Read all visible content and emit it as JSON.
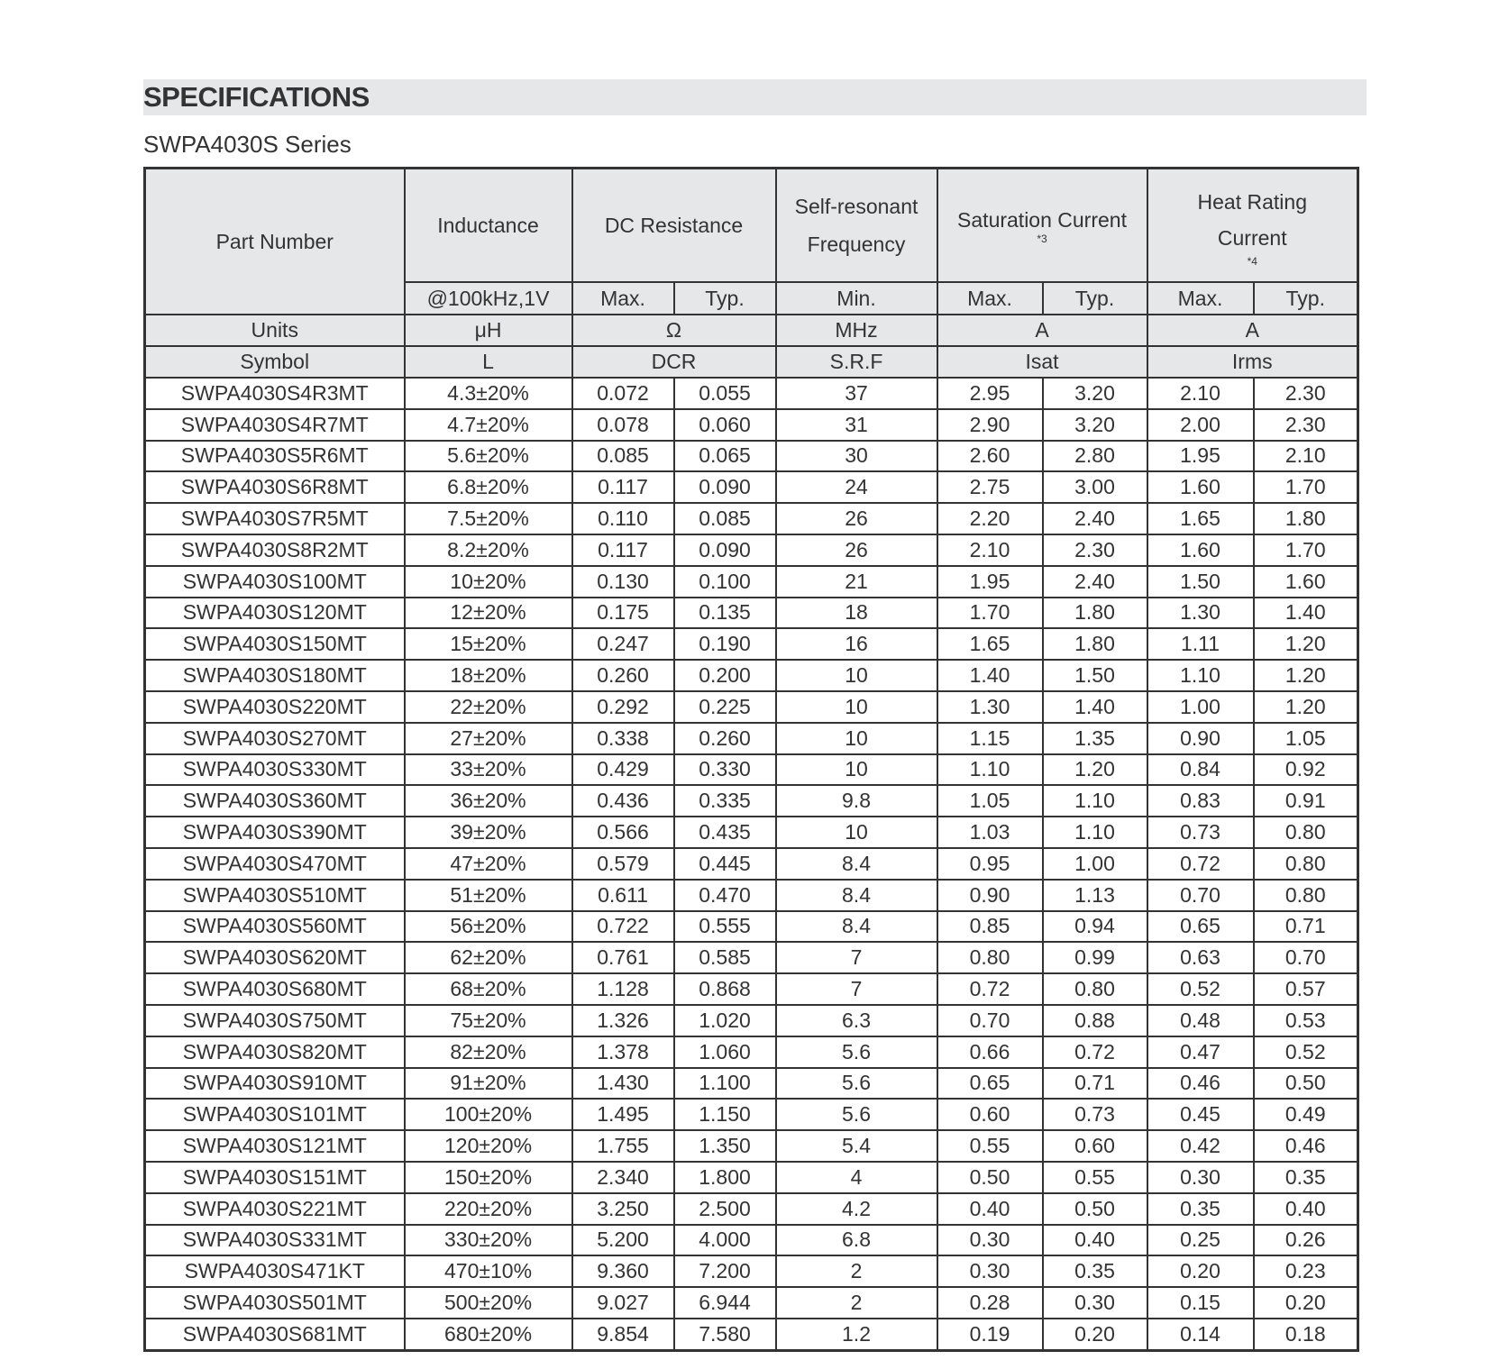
{
  "title": "SPECIFICATIONS",
  "series": "SWPA4030S Series",
  "header": {
    "part_number": "Part Number",
    "inductance": "Inductance",
    "dc_resistance": "DC Resistance",
    "srf_line1": "Self-resonant",
    "srf_line2": "Frequency",
    "sat_current": "Saturation Current",
    "sat_note": "*3",
    "heat_line1": "Heat Rating",
    "heat_line2": "Current",
    "heat_note": "*4",
    "ind_cond": "@100kHz,1V",
    "max": "Max.",
    "typ": "Typ.",
    "min": "Min.",
    "units_label": "Units",
    "units": [
      "μH",
      "Ω",
      "MHz",
      "A",
      "A"
    ],
    "symbol_label": "Symbol",
    "symbols": [
      "L",
      "DCR",
      "S.R.F",
      "Isat",
      "Irms"
    ]
  },
  "rows": [
    [
      "SWPA4030S4R3MT",
      "4.3±20%",
      "0.072",
      "0.055",
      "37",
      "2.95",
      "3.20",
      "2.10",
      "2.30"
    ],
    [
      "SWPA4030S4R7MT",
      "4.7±20%",
      "0.078",
      "0.060",
      "31",
      "2.90",
      "3.20",
      "2.00",
      "2.30"
    ],
    [
      "SWPA4030S5R6MT",
      "5.6±20%",
      "0.085",
      "0.065",
      "30",
      "2.60",
      "2.80",
      "1.95",
      "2.10"
    ],
    [
      "SWPA4030S6R8MT",
      "6.8±20%",
      "0.117",
      "0.090",
      "24",
      "2.75",
      "3.00",
      "1.60",
      "1.70"
    ],
    [
      "SWPA4030S7R5MT",
      "7.5±20%",
      "0.110",
      "0.085",
      "26",
      "2.20",
      "2.40",
      "1.65",
      "1.80"
    ],
    [
      "SWPA4030S8R2MT",
      "8.2±20%",
      "0.117",
      "0.090",
      "26",
      "2.10",
      "2.30",
      "1.60",
      "1.70"
    ],
    [
      "SWPA4030S100MT",
      "10±20%",
      "0.130",
      "0.100",
      "21",
      "1.95",
      "2.40",
      "1.50",
      "1.60"
    ],
    [
      "SWPA4030S120MT",
      "12±20%",
      "0.175",
      "0.135",
      "18",
      "1.70",
      "1.80",
      "1.30",
      "1.40"
    ],
    [
      "SWPA4030S150MT",
      "15±20%",
      "0.247",
      "0.190",
      "16",
      "1.65",
      "1.80",
      "1.11",
      "1.20"
    ],
    [
      "SWPA4030S180MT",
      "18±20%",
      "0.260",
      "0.200",
      "10",
      "1.40",
      "1.50",
      "1.10",
      "1.20"
    ],
    [
      "SWPA4030S220MT",
      "22±20%",
      "0.292",
      "0.225",
      "10",
      "1.30",
      "1.40",
      "1.00",
      "1.20"
    ],
    [
      "SWPA4030S270MT",
      "27±20%",
      "0.338",
      "0.260",
      "10",
      "1.15",
      "1.35",
      "0.90",
      "1.05"
    ],
    [
      "SWPA4030S330MT",
      "33±20%",
      "0.429",
      "0.330",
      "10",
      "1.10",
      "1.20",
      "0.84",
      "0.92"
    ],
    [
      "SWPA4030S360MT",
      "36±20%",
      "0.436",
      "0.335",
      "9.8",
      "1.05",
      "1.10",
      "0.83",
      "0.91"
    ],
    [
      "SWPA4030S390MT",
      "39±20%",
      "0.566",
      "0.435",
      "10",
      "1.03",
      "1.10",
      "0.73",
      "0.80"
    ],
    [
      "SWPA4030S470MT",
      "47±20%",
      "0.579",
      "0.445",
      "8.4",
      "0.95",
      "1.00",
      "0.72",
      "0.80"
    ],
    [
      "SWPA4030S510MT",
      "51±20%",
      "0.611",
      "0.470",
      "8.4",
      "0.90",
      "1.13",
      "0.70",
      "0.80"
    ],
    [
      "SWPA4030S560MT",
      "56±20%",
      "0.722",
      "0.555",
      "8.4",
      "0.85",
      "0.94",
      "0.65",
      "0.71"
    ],
    [
      "SWPA4030S620MT",
      "62±20%",
      "0.761",
      "0.585",
      "7",
      "0.80",
      "0.99",
      "0.63",
      "0.70"
    ],
    [
      "SWPA4030S680MT",
      "68±20%",
      "1.128",
      "0.868",
      "7",
      "0.72",
      "0.80",
      "0.52",
      "0.57"
    ],
    [
      "SWPA4030S750MT",
      "75±20%",
      "1.326",
      "1.020",
      "6.3",
      "0.70",
      "0.88",
      "0.48",
      "0.53"
    ],
    [
      "SWPA4030S820MT",
      "82±20%",
      "1.378",
      "1.060",
      "5.6",
      "0.66",
      "0.72",
      "0.47",
      "0.52"
    ],
    [
      "SWPA4030S910MT",
      "91±20%",
      "1.430",
      "1.100",
      "5.6",
      "0.65",
      "0.71",
      "0.46",
      "0.50"
    ],
    [
      "SWPA4030S101MT",
      "100±20%",
      "1.495",
      "1.150",
      "5.6",
      "0.60",
      "0.73",
      "0.45",
      "0.49"
    ],
    [
      "SWPA4030S121MT",
      "120±20%",
      "1.755",
      "1.350",
      "5.4",
      "0.55",
      "0.60",
      "0.42",
      "0.46"
    ],
    [
      "SWPA4030S151MT",
      "150±20%",
      "2.340",
      "1.800",
      "4",
      "0.50",
      "0.55",
      "0.30",
      "0.35"
    ],
    [
      "SWPA4030S221MT",
      "220±20%",
      "3.250",
      "2.500",
      "4.2",
      "0.40",
      "0.50",
      "0.35",
      "0.40"
    ],
    [
      "SWPA4030S331MT",
      "330±20%",
      "5.200",
      "4.000",
      "6.8",
      "0.30",
      "0.40",
      "0.25",
      "0.26"
    ],
    [
      "SWPA4030S471KT",
      "470±10%",
      "9.360",
      "7.200",
      "2",
      "0.30",
      "0.35",
      "0.20",
      "0.23"
    ],
    [
      "SWPA4030S501MT",
      "500±20%",
      "9.027",
      "6.944",
      "2",
      "0.28",
      "0.30",
      "0.15",
      "0.20"
    ],
    [
      "SWPA4030S681MT",
      "680±20%",
      "9.854",
      "7.580",
      "1.2",
      "0.19",
      "0.20",
      "0.14",
      "0.18"
    ]
  ],
  "colors": {
    "header_bg": "#e6e7e8",
    "text": "#333333",
    "border": "#333333"
  }
}
